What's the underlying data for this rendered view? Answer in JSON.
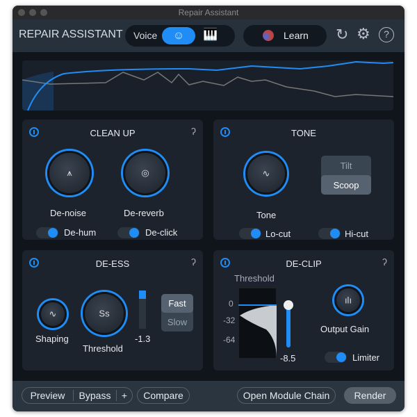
{
  "window": {
    "title": "Repair Assistant"
  },
  "header": {
    "app_title": "REPAIR ASSISTANT",
    "mode_label": "Voice",
    "mode_selected": "voice-icon",
    "mode_other": "instrument-icon",
    "learn_label": "Learn"
  },
  "cleanup": {
    "title": "CLEAN UP",
    "knobs": [
      {
        "label": "De-noise"
      },
      {
        "label": "De-reverb"
      }
    ],
    "toggles": [
      {
        "label": "De-hum",
        "on": true
      },
      {
        "label": "De-click",
        "on": true
      }
    ]
  },
  "tone": {
    "title": "TONE",
    "knob_label": "Tone",
    "options": [
      "Tilt",
      "Scoop"
    ],
    "selected": "Scoop",
    "toggles": [
      {
        "label": "Lo-cut",
        "on": true
      },
      {
        "label": "Hi-cut",
        "on": true
      }
    ]
  },
  "deess": {
    "title": "DE-ESS",
    "knobs": [
      {
        "label": "Shaping"
      },
      {
        "label": "Threshold"
      }
    ],
    "threshold_value": "-1.3",
    "options": [
      "Fast",
      "Slow"
    ],
    "selected": "Fast"
  },
  "declip": {
    "title": "DE-CLIP",
    "threshold_label": "Threshold",
    "scale": [
      "0",
      "-32",
      "-64"
    ],
    "threshold_value": "-8.5",
    "knob_label": "Output Gain",
    "limiter_label": "Limiter",
    "limiter_on": true
  },
  "footer": {
    "preview": "Preview",
    "bypass": "Bypass",
    "plus": "+",
    "compare": "Compare",
    "open_chain": "Open Module Chain",
    "render": "Render"
  },
  "colors": {
    "accent": "#1f8df5",
    "panel": "#1c232d",
    "background": "#10151c"
  }
}
